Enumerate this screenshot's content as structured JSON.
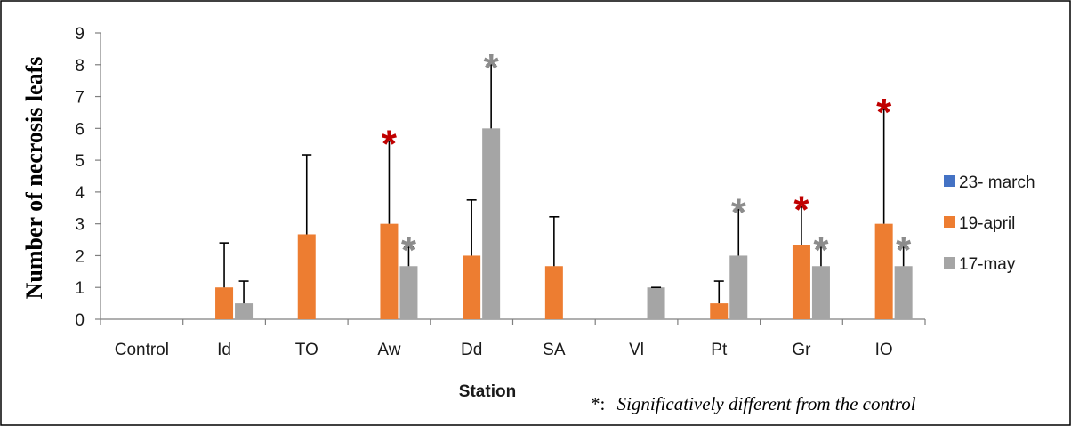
{
  "chart_data": {
    "type": "bar",
    "ylabel": "Number of necrosis leafs",
    "xlabel": "Station",
    "ylim": [
      0,
      9
    ],
    "yticks": [
      0,
      1,
      2,
      3,
      4,
      5,
      6,
      7,
      8,
      9
    ],
    "categories": [
      "Control",
      "Id",
      "TO",
      "Aw",
      "Dd",
      "SA",
      "Vl",
      "Pt",
      "Gr",
      "IO"
    ],
    "legend_position": "right",
    "series": [
      {
        "name": "23- march",
        "color": "#4472c4",
        "values": [
          0,
          0,
          0,
          0,
          0,
          0,
          0,
          0,
          0,
          0
        ],
        "errors": [
          0,
          0,
          0,
          0,
          0,
          0,
          0,
          0,
          0,
          0
        ],
        "significant": [
          false,
          false,
          false,
          false,
          false,
          false,
          false,
          false,
          false,
          false
        ]
      },
      {
        "name": "19-april",
        "color": "#ed7d31",
        "values": [
          0,
          1,
          2.67,
          3,
          2,
          1.67,
          0,
          0.5,
          2.33,
          3
        ],
        "errors": [
          0,
          1.4,
          2.5,
          2.6,
          1.75,
          1.55,
          0,
          0.7,
          1.2,
          3.6
        ],
        "significant": [
          false,
          false,
          false,
          true,
          false,
          false,
          false,
          false,
          true,
          true
        ]
      },
      {
        "name": "17-may",
        "color": "#a5a5a5",
        "values": [
          0,
          0.5,
          0,
          1.67,
          6,
          0,
          1,
          2,
          1.67,
          1.67
        ],
        "errors": [
          0,
          0.7,
          0,
          0.6,
          2,
          0,
          0,
          1.45,
          0.6,
          0.6
        ],
        "significant": [
          false,
          false,
          false,
          true,
          true,
          false,
          false,
          true,
          true,
          true
        ]
      }
    ],
    "significance_marker": "*",
    "significance_colors": [
      "#4472c4",
      "#c00000",
      "#8c8c8c"
    ],
    "note": {
      "symbol": "*:",
      "text": "Significatively different from the control"
    }
  }
}
